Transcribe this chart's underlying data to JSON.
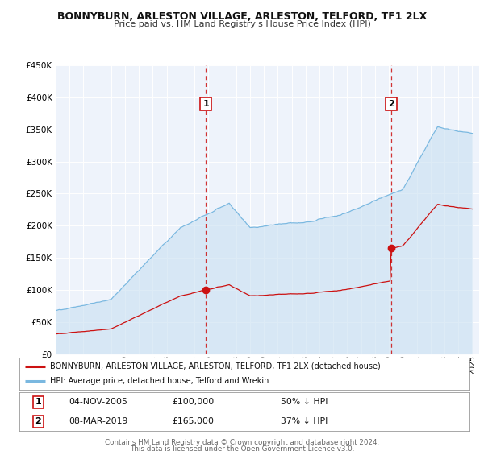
{
  "title": "BONNYBURN, ARLESTON VILLAGE, ARLESTON, TELFORD, TF1 2LX",
  "subtitle": "Price paid vs. HM Land Registry's House Price Index (HPI)",
  "background_color": "#ffffff",
  "plot_bg_color": "#eef3fb",
  "grid_color": "#ffffff",
  "hpi_color": "#7ab8e0",
  "hpi_fill_color": "#c8dff2",
  "price_color": "#cc1111",
  "legend_line1": "BONNYBURN, ARLESTON VILLAGE, ARLESTON, TELFORD, TF1 2LX (detached house)",
  "legend_line2": "HPI: Average price, detached house, Telford and Wrekin",
  "table_row1": [
    "1",
    "04-NOV-2005",
    "£100,000",
    "50% ↓ HPI"
  ],
  "table_row2": [
    "2",
    "08-MAR-2019",
    "£165,000",
    "37% ↓ HPI"
  ],
  "footer1": "Contains HM Land Registry data © Crown copyright and database right 2024.",
  "footer2": "This data is licensed under the Open Government Licence v3.0.",
  "ylim": [
    0,
    450000
  ],
  "yticks": [
    0,
    50000,
    100000,
    150000,
    200000,
    250000,
    300000,
    350000,
    400000,
    450000
  ],
  "sale1_year": 2005.833,
  "sale2_year": 2019.167,
  "sale1_price": 100000,
  "sale2_price": 165000
}
